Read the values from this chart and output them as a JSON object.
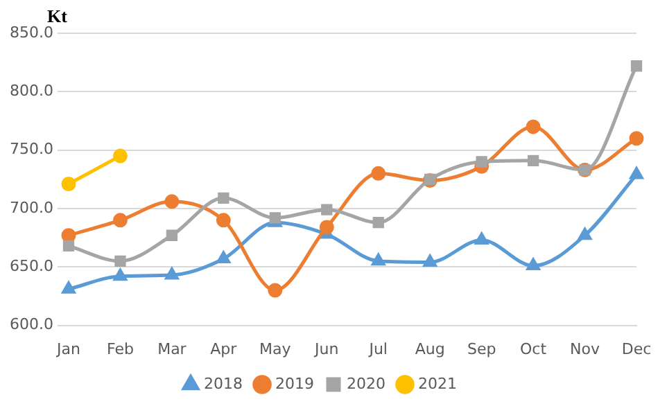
{
  "chart_data": {
    "type": "line",
    "ylabel": "Kt",
    "categories": [
      "Jan",
      "Feb",
      "Mar",
      "Apr",
      "May",
      "Jun",
      "Jul",
      "Aug",
      "Sep",
      "Oct",
      "Nov",
      "Dec"
    ],
    "series": [
      {
        "name": "2018",
        "color": "#5b9bd5",
        "marker": "triangle",
        "values": [
          631,
          642,
          643,
          657,
          688,
          678,
          655,
          654,
          673,
          651,
          677,
          729
        ]
      },
      {
        "name": "2019",
        "color": "#ed7d31",
        "marker": "circle",
        "values": [
          677,
          690,
          706,
          690,
          630,
          684,
          730,
          724,
          736,
          770,
          733,
          760
        ]
      },
      {
        "name": "2020",
        "color": "#a5a5a5",
        "marker": "square",
        "values": [
          668,
          655,
          677,
          709,
          692,
          699,
          688,
          725,
          740,
          741,
          733,
          822
        ]
      },
      {
        "name": "2021",
        "color": "#ffc000",
        "marker": "circle",
        "values": [
          721,
          745,
          null,
          null,
          null,
          null,
          null,
          null,
          null,
          null,
          null,
          null
        ]
      }
    ],
    "ylim": [
      600,
      850
    ],
    "yticks": [
      {
        "value": 600,
        "label": "600.0"
      },
      {
        "value": 650,
        "label": "650.0"
      },
      {
        "value": 700,
        "label": "700.0"
      },
      {
        "value": 750,
        "label": "750.0"
      },
      {
        "value": 800,
        "label": "800.0"
      },
      {
        "value": 850,
        "label": "850.0"
      }
    ],
    "grid": "y",
    "legend": "bottom"
  }
}
